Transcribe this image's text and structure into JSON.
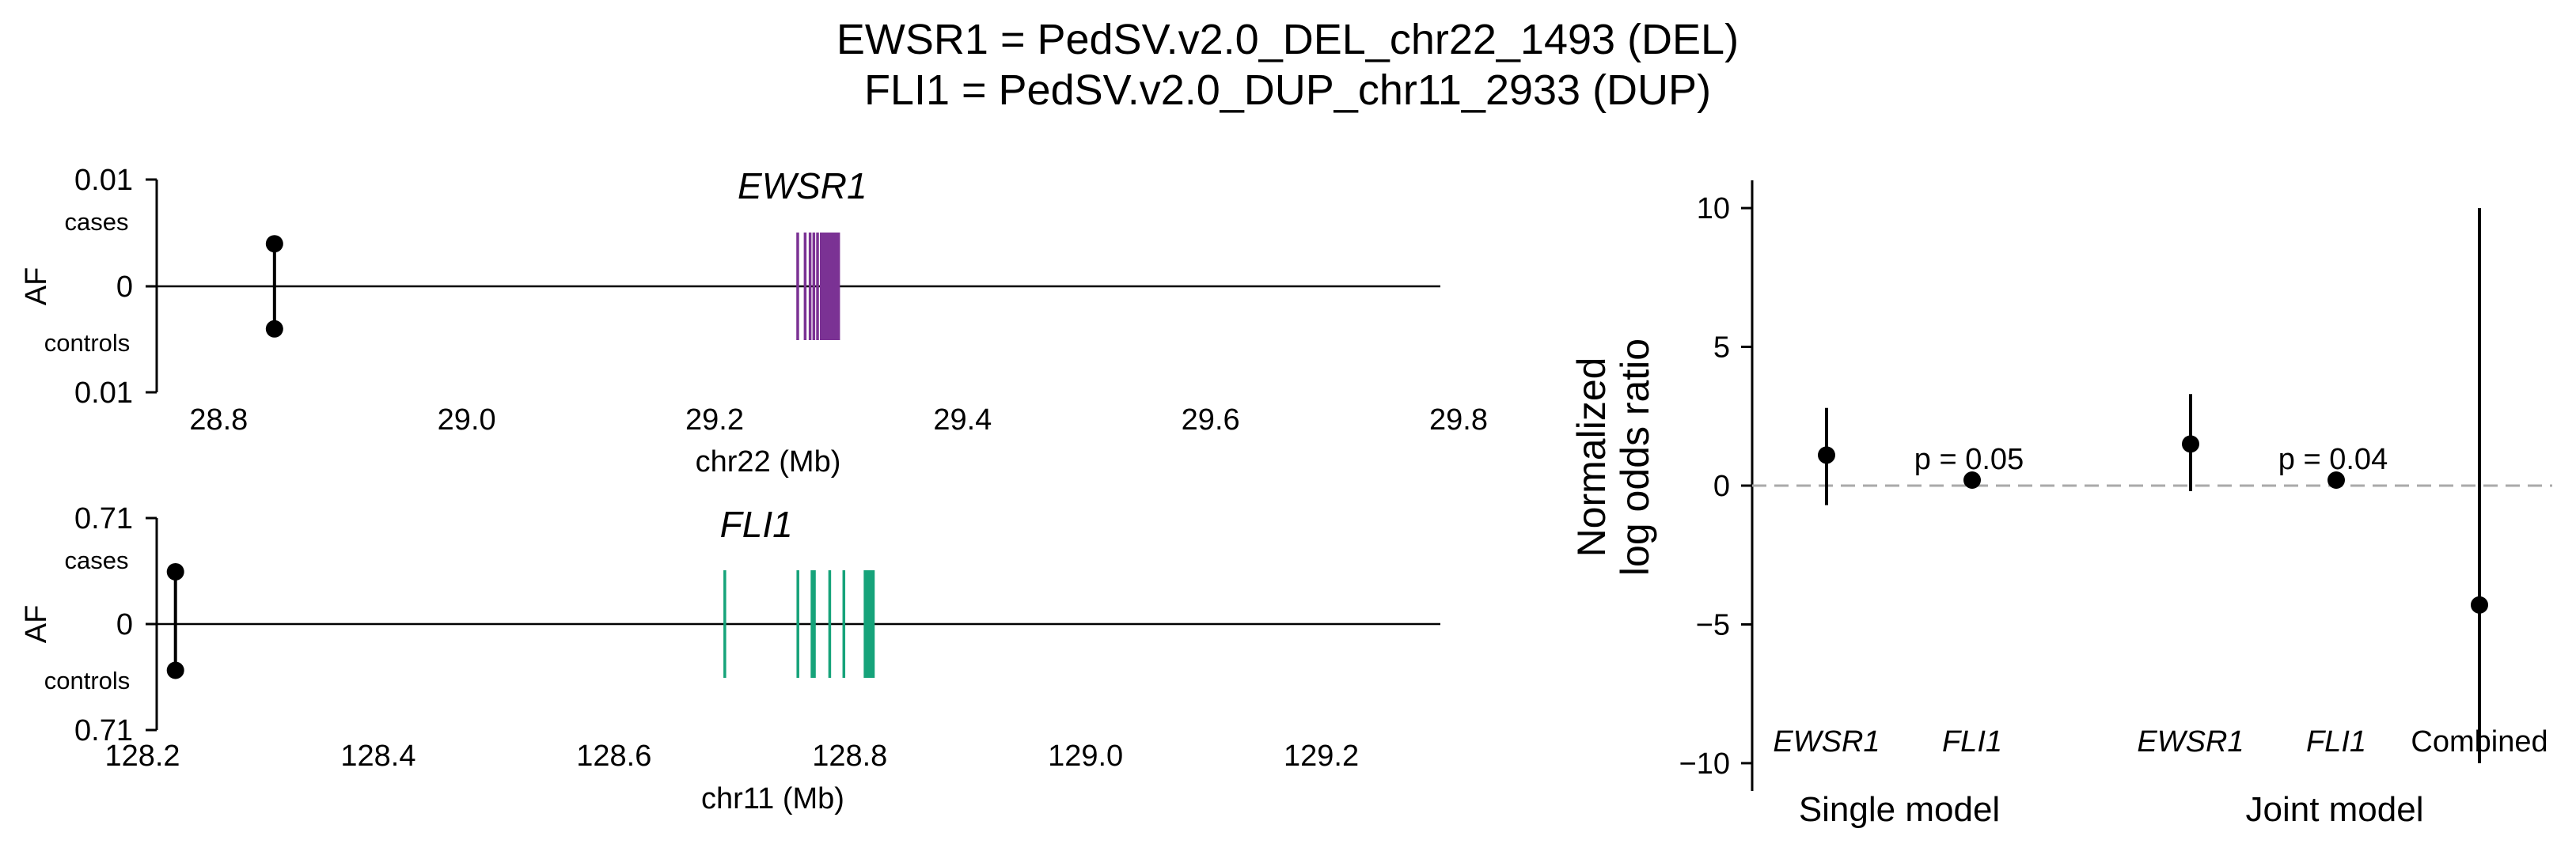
{
  "title_lines": [
    "EWSR1 = PedSV.v2.0_DEL_chr22_1493 (DEL)",
    "FLI1 = PedSV.v2.0_DUP_chr11_2933 (DUP)"
  ],
  "colors": {
    "EWSR1": "#7b3294",
    "FLI1": "#16a37a",
    "point": "#000000",
    "zero_line": "#aaaaaa"
  },
  "chart_data": [
    {
      "type": "scatter",
      "gene": "EWSR1",
      "ylabel": "AF",
      "xlabel": "chr22 (Mb)",
      "y_top_label": "0.01",
      "y_zero_label": "0",
      "y_bottom_label": "0.01",
      "cases_label": "cases",
      "controls_label": "controls",
      "xlim": [
        28.75,
        29.8
      ],
      "xticks": [
        "28.8",
        "29.0",
        "29.2",
        "29.4",
        "29.6",
        "29.8"
      ],
      "sv_position": 28.845,
      "af_cases": 0.004,
      "af_controls": 0.004,
      "af_max": 0.01,
      "exons": [
        29.267,
        29.273,
        29.277,
        29.28,
        29.283,
        29.286,
        29.288,
        29.29,
        29.292,
        29.294,
        29.296,
        29.298,
        29.3
      ]
    },
    {
      "type": "scatter",
      "gene": "FLI1",
      "ylabel": "AF",
      "xlabel": "chr11 (Mb)",
      "y_top_label": "0.71",
      "y_zero_label": "0",
      "y_bottom_label": "0.71",
      "cases_label": "cases",
      "controls_label": "controls",
      "xlim": [
        128.2,
        129.35
      ],
      "xticks": [
        "128.2",
        "128.4",
        "128.6",
        "128.8",
        "129.0",
        "129.2"
      ],
      "sv_position": 128.228,
      "af_cases": 0.35,
      "af_controls": 0.31,
      "af_max": 0.71,
      "exons": [
        128.694,
        128.756,
        128.768,
        128.77,
        128.783,
        128.795,
        128.813,
        128.815,
        128.817,
        128.818,
        128.82
      ]
    },
    {
      "type": "scatter",
      "ylabel_lines": [
        "Normalized",
        "log odds ratio"
      ],
      "ylim": [
        -11,
        11
      ],
      "yticks": [
        "10",
        "5",
        "0",
        "−5",
        "−10"
      ],
      "reference_line": 0,
      "points": [
        {
          "label": "EWSR1",
          "italic": true,
          "group": "Single model",
          "estimate": 1.1,
          "ci": [
            -0.7,
            2.8
          ],
          "annotation": ""
        },
        {
          "label": "FLI1",
          "italic": true,
          "group": "Single model",
          "estimate": 0.2,
          "ci": [
            0.2,
            0.2
          ],
          "annotation": "p = 0.05"
        },
        {
          "label": "EWSR1",
          "italic": true,
          "group": "Joint model",
          "estimate": 1.5,
          "ci": [
            -0.2,
            3.3
          ],
          "annotation": ""
        },
        {
          "label": "FLI1",
          "italic": true,
          "group": "Joint model",
          "estimate": 0.2,
          "ci": [
            0.2,
            0.2
          ],
          "annotation": "p = 0.04"
        },
        {
          "label": "Combined",
          "italic": false,
          "group": "Joint model",
          "estimate": -4.3,
          "ci": [
            -10,
            10
          ],
          "annotation": ""
        }
      ],
      "groups": [
        "Single model",
        "Joint model"
      ]
    }
  ]
}
